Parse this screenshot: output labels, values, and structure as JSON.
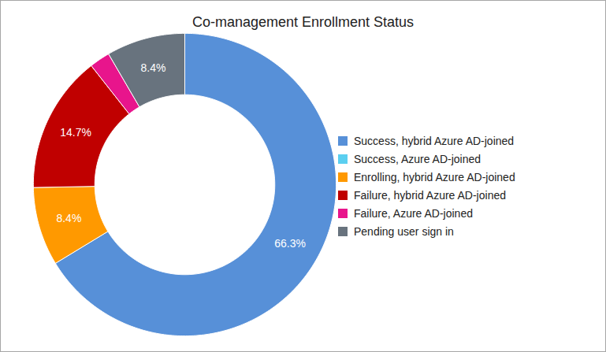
{
  "chart_data": {
    "type": "donut",
    "title": "Co-management Enrollment Status",
    "categories": [
      "Success, hybrid Azure AD-joined",
      "Success, Azure AD-joined",
      "Enrolling, hybrid Azure AD-joined",
      "Failure, hybrid Azure AD-joined",
      "Failure, Azure AD-joined",
      "Pending user sign in"
    ],
    "values": [
      66.3,
      0,
      8.4,
      14.7,
      2.2,
      8.4
    ],
    "value_labels": [
      "66.3%",
      null,
      "8.4%",
      "14.7%",
      null,
      "8.4%"
    ],
    "colors": [
      "#5790d8",
      "#5bcff0",
      "#ff9900",
      "#c00000",
      "#e8158c",
      "#68737e"
    ],
    "data_labels": true,
    "legend": "right"
  }
}
